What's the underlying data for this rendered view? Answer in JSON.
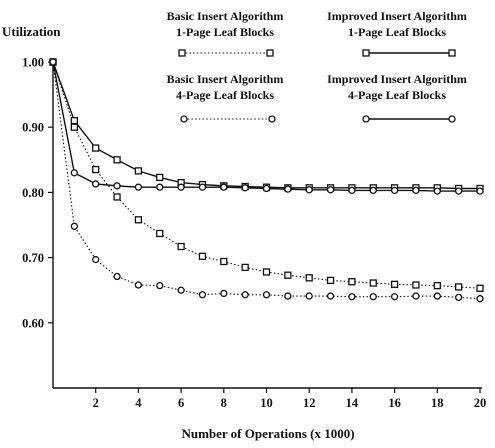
{
  "chart_data": {
    "type": "line",
    "ylabel": "Utilization",
    "xlabel": "Number of Operations (x 1000)",
    "xlim": [
      0,
      20
    ],
    "ylim": [
      0.5,
      1.0
    ],
    "xticks": [
      "2",
      "4",
      "6",
      "8",
      "10",
      "12",
      "14",
      "16",
      "18",
      "20"
    ],
    "yticks": [
      "1.00",
      "0.90",
      "0.80",
      "0.70",
      "0.60"
    ],
    "x": [
      0,
      1,
      2,
      3,
      4,
      5,
      6,
      7,
      8,
      9,
      10,
      11,
      12,
      13,
      14,
      15,
      16,
      17,
      18,
      19,
      20
    ],
    "legend_position": "top",
    "series": [
      {
        "key": "basic_1page",
        "legend_lines": [
          "Basic Insert Algorithm",
          "1-Page Leaf Blocks"
        ],
        "marker": "open-square",
        "line_style": "dotted",
        "values": [
          1.0,
          0.9,
          0.835,
          0.793,
          0.758,
          0.737,
          0.717,
          0.702,
          0.694,
          0.685,
          0.678,
          0.673,
          0.669,
          0.665,
          0.663,
          0.661,
          0.659,
          0.658,
          0.657,
          0.655,
          0.653
        ]
      },
      {
        "key": "improved_1page",
        "legend_lines": [
          "Improved Insert Algorithm",
          "1-Page Leaf Blocks"
        ],
        "marker": "open-square",
        "line_style": "solid",
        "values": [
          1.0,
          0.91,
          0.868,
          0.85,
          0.833,
          0.823,
          0.815,
          0.812,
          0.81,
          0.809,
          0.808,
          0.807,
          0.807,
          0.807,
          0.807,
          0.807,
          0.807,
          0.807,
          0.807,
          0.806,
          0.806
        ]
      },
      {
        "key": "basic_4page",
        "legend_lines": [
          "Basic Insert Algorithm",
          "4-Page Leaf Blocks"
        ],
        "marker": "open-circle",
        "line_style": "dotted",
        "values": [
          1.0,
          0.748,
          0.697,
          0.671,
          0.658,
          0.657,
          0.65,
          0.643,
          0.645,
          0.643,
          0.643,
          0.641,
          0.641,
          0.641,
          0.64,
          0.64,
          0.64,
          0.641,
          0.641,
          0.639,
          0.637
        ]
      },
      {
        "key": "improved_4page",
        "legend_lines": [
          "Improved Insert Algorithm",
          "4-Page Leaf Blocks"
        ],
        "marker": "open-circle",
        "line_style": "solid",
        "values": [
          1.0,
          0.83,
          0.813,
          0.81,
          0.808,
          0.808,
          0.808,
          0.808,
          0.808,
          0.807,
          0.806,
          0.805,
          0.804,
          0.804,
          0.803,
          0.803,
          0.803,
          0.803,
          0.802,
          0.802,
          0.802
        ]
      }
    ]
  }
}
